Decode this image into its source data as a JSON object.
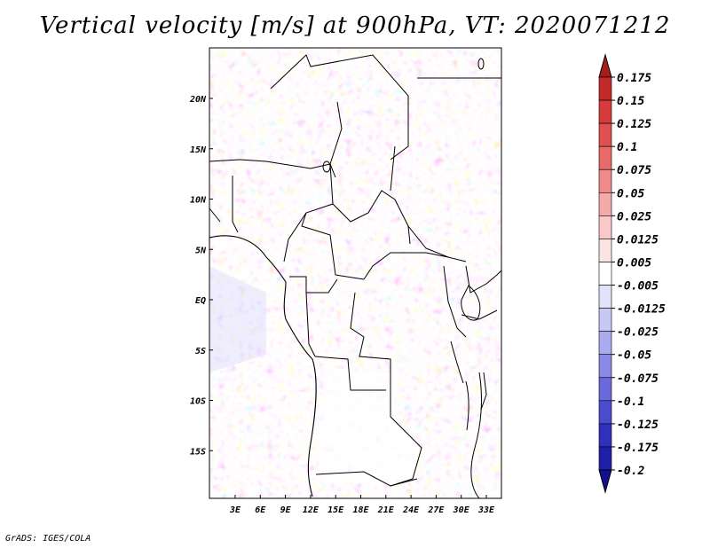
{
  "title": "Vertical velocity [m/s] at 900hPa, VT: 2020071212",
  "credit": "GrADS: IGES/COLA",
  "map": {
    "lat_labels": [
      "20N",
      "15N",
      "10N",
      "5N",
      "EQ",
      "5S",
      "10S",
      "15S"
    ],
    "lat_values": [
      20,
      15,
      10,
      5,
      0,
      -5,
      -10,
      -15
    ],
    "lon_labels": [
      "3E",
      "6E",
      "9E",
      "12E",
      "15E",
      "18E",
      "21E",
      "24E",
      "27E",
      "30E",
      "33E"
    ],
    "lon_values": [
      3,
      6,
      9,
      12,
      15,
      18,
      21,
      24,
      27,
      30,
      33
    ],
    "lon_range": [
      0,
      35
    ],
    "lat_range": [
      -20,
      25
    ]
  },
  "colorbar": {
    "labels": [
      "0.175",
      "0.15",
      "0.125",
      "0.1",
      "0.075",
      "0.05",
      "0.025",
      "0.0125",
      "0.005",
      "-0.005",
      "-0.0125",
      "-0.025",
      "-0.05",
      "-0.075",
      "-0.1",
      "-0.125",
      "-0.175",
      "-0.2"
    ],
    "colors": [
      "#a81c1c",
      "#c42a2a",
      "#d63a3a",
      "#e05050",
      "#e86a6a",
      "#ef8a8a",
      "#f5aaaa",
      "#f9c8c8",
      "#fde4e4",
      "#ffffff",
      "#e2e2fb",
      "#c8c8f5",
      "#aaaaef",
      "#8a8ae6",
      "#6a6adc",
      "#4b4bcf",
      "#3030bf",
      "#1e1ea8",
      "#101090"
    ]
  }
}
